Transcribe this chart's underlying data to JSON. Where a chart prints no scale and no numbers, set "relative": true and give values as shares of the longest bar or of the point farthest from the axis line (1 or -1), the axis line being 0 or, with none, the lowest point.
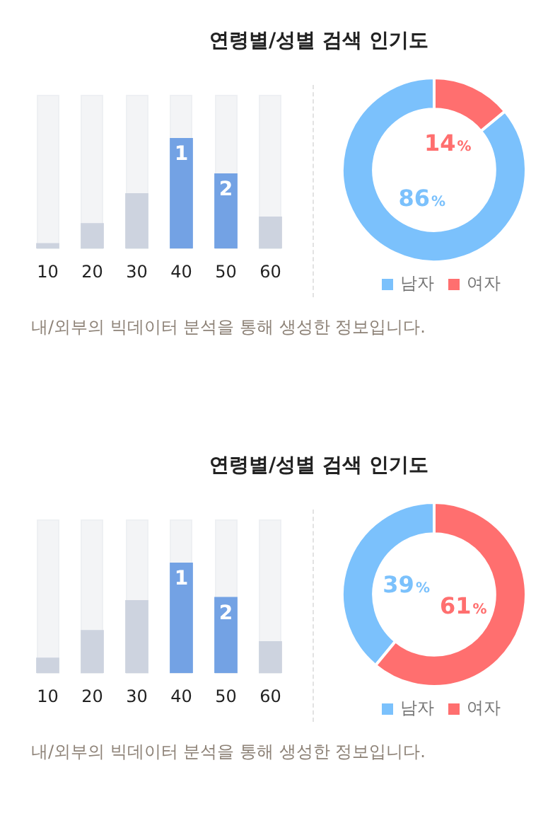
{
  "chart_data": [
    {
      "type": "bar",
      "title": "연령별/성별 검색 인기도",
      "categories": [
        "10",
        "20",
        "30",
        "40",
        "50",
        "60"
      ],
      "values": [
        0.05,
        0.23,
        0.5,
        1,
        0.68,
        0.29
      ],
      "colors": [
        "#cdd3df",
        "#cdd3df",
        "#cdd3df",
        "#73a2e4",
        "#73a2e4",
        "#cdd3df"
      ],
      "relative": true,
      "legend": false,
      "grid": false,
      "annotations": [
        {
          "text": "1",
          "x": "40",
          "y": 1
        },
        {
          "text": "2",
          "x": "50",
          "y": 0.68
        },
        "내/외부의 빅데이터 분석을 통해 생성한 정보입니다."
      ]
    },
    {
      "type": "donut",
      "categories": [
        "남자",
        "여자"
      ],
      "values": [
        86,
        14
      ],
      "colors": [
        "#7bc1fc",
        "#ff6f6f"
      ],
      "value_labels": [
        "86%",
        "14%"
      ],
      "legend": "bottom"
    },
    {
      "type": "bar",
      "title": "연령별/성별 검색 인기도",
      "categories": [
        "10",
        "20",
        "30",
        "40",
        "50",
        "60"
      ],
      "values": [
        0.14,
        0.39,
        0.66,
        1,
        0.69,
        0.29
      ],
      "colors": [
        "#cdd3df",
        "#cdd3df",
        "#cdd3df",
        "#73a2e4",
        "#73a2e4",
        "#cdd3df"
      ],
      "relative": true,
      "legend": false,
      "grid": false,
      "annotations": [
        {
          "text": "1",
          "x": "40",
          "y": 1
        },
        {
          "text": "2",
          "x": "50",
          "y": 0.69
        },
        "내/외부의 빅데이터 분석을 통해 생성한 정보입니다."
      ]
    },
    {
      "type": "donut",
      "categories": [
        "남자",
        "여자"
      ],
      "values": [
        39,
        61
      ],
      "colors": [
        "#7bc1fc",
        "#ff6f6f"
      ],
      "value_labels": [
        "39%",
        "61%"
      ],
      "legend": "bottom"
    }
  ]
}
